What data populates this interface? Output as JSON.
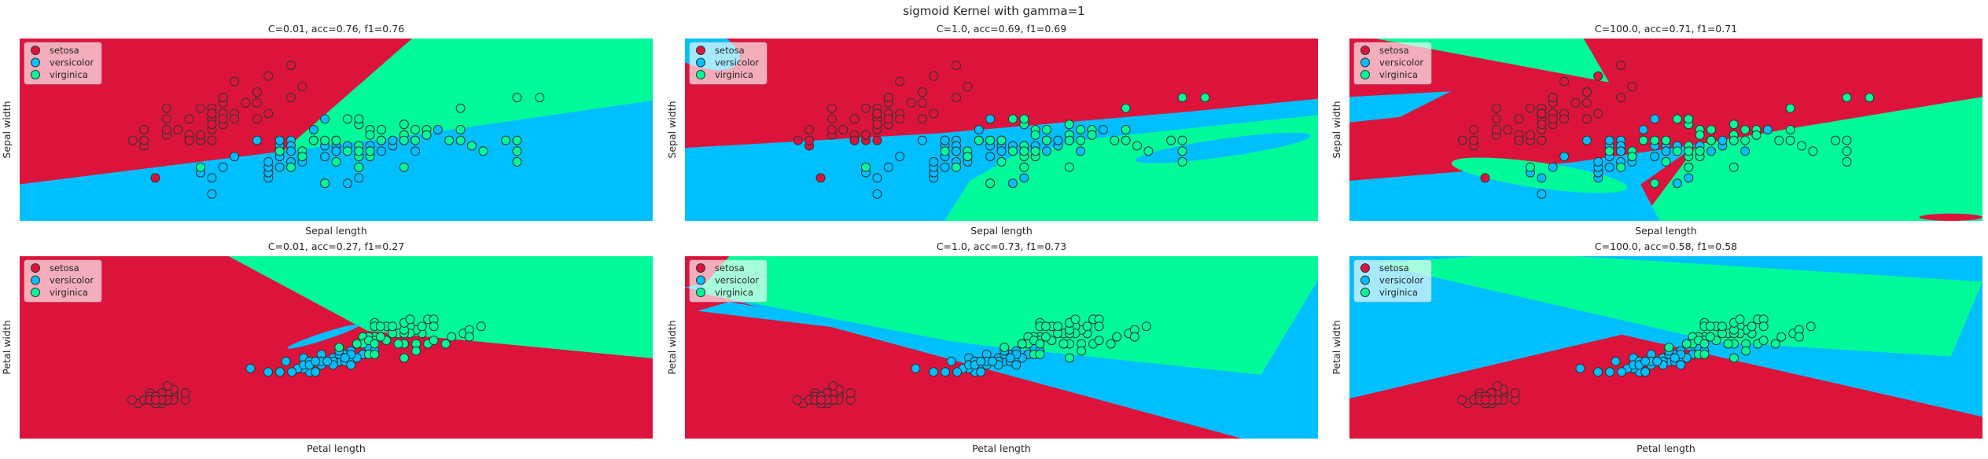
{
  "figure": {
    "suptitle": "sigmoid Kernel with gamma=1"
  },
  "colors": {
    "setosa": "#dc143c",
    "versicolor": "#00bfff",
    "virginica": "#00fa9a",
    "background": "#ffffff",
    "marker_edge": "#333333"
  },
  "legend": {
    "location": "upper-left",
    "entries": [
      "setosa",
      "versicolor",
      "virginica"
    ]
  },
  "chart_data": [
    {
      "type": "scatter",
      "title": "C=0.01, acc=0.76, f1=0.76",
      "xlabel": "Sepal length",
      "ylabel": "Sepal width",
      "features": "sepal",
      "region_variant": "sepal_C001",
      "xlim": [
        3.3,
        8.9
      ],
      "ylim": [
        1.5,
        4.9
      ],
      "ticks": false,
      "grid": false
    },
    {
      "type": "scatter",
      "title": "C=1.0, acc=0.69, f1=0.69",
      "xlabel": "Sepal length",
      "ylabel": "Sepal width",
      "features": "sepal",
      "region_variant": "sepal_C1",
      "xlim": [
        3.3,
        8.9
      ],
      "ylim": [
        1.5,
        4.9
      ],
      "ticks": false,
      "grid": false
    },
    {
      "type": "scatter",
      "title": "C=100.0, acc=0.71, f1=0.71",
      "xlabel": "Sepal length",
      "ylabel": "Sepal width",
      "features": "sepal",
      "region_variant": "sepal_C100",
      "xlim": [
        3.3,
        8.9
      ],
      "ylim": [
        1.5,
        4.9
      ],
      "ticks": false,
      "grid": false
    },
    {
      "type": "scatter",
      "title": "C=0.01, acc=0.27, f1=0.27",
      "xlabel": "Petal length",
      "ylabel": "Petal width",
      "features": "petal",
      "region_variant": "petal_C001",
      "xlim": [
        -0.9,
        9.8
      ],
      "ylim": [
        -0.9,
        4.3
      ],
      "ticks": false,
      "grid": false
    },
    {
      "type": "scatter",
      "title": "C=1.0, acc=0.73, f1=0.73",
      "xlabel": "Petal length",
      "ylabel": "Petal width",
      "features": "petal",
      "region_variant": "petal_C1",
      "xlim": [
        -0.9,
        9.8
      ],
      "ylim": [
        -0.9,
        4.3
      ],
      "ticks": false,
      "grid": false
    },
    {
      "type": "scatter",
      "title": "C=100.0, acc=0.58, f1=0.58",
      "xlabel": "Petal length",
      "ylabel": "Petal width",
      "features": "petal",
      "region_variant": "petal_C100",
      "xlim": [
        -0.9,
        9.8
      ],
      "ylim": [
        -0.9,
        4.3
      ],
      "ticks": false,
      "grid": false
    }
  ],
  "datasets": {
    "sepal": {
      "setosa": [
        [
          5.1,
          3.5
        ],
        [
          4.9,
          3.0
        ],
        [
          4.7,
          3.2
        ],
        [
          4.6,
          3.1
        ],
        [
          5.0,
          3.6
        ],
        [
          5.4,
          3.9
        ],
        [
          4.6,
          3.4
        ],
        [
          5.0,
          3.4
        ],
        [
          4.4,
          2.9
        ],
        [
          4.9,
          3.1
        ],
        [
          5.4,
          3.7
        ],
        [
          4.8,
          3.4
        ],
        [
          4.8,
          3.0
        ],
        [
          4.3,
          3.0
        ],
        [
          5.8,
          4.0
        ],
        [
          5.7,
          4.4
        ],
        [
          5.4,
          3.9
        ],
        [
          5.1,
          3.5
        ],
        [
          5.7,
          3.8
        ],
        [
          5.1,
          3.8
        ],
        [
          5.4,
          3.4
        ],
        [
          5.1,
          3.7
        ],
        [
          4.6,
          3.6
        ],
        [
          5.1,
          3.3
        ],
        [
          4.8,
          3.4
        ],
        [
          5.0,
          3.0
        ],
        [
          5.0,
          3.4
        ],
        [
          5.2,
          3.5
        ],
        [
          5.2,
          3.4
        ],
        [
          4.7,
          3.2
        ],
        [
          4.8,
          3.1
        ],
        [
          5.4,
          3.4
        ],
        [
          5.2,
          4.1
        ],
        [
          5.5,
          4.2
        ],
        [
          4.9,
          3.1
        ],
        [
          5.0,
          3.2
        ],
        [
          5.5,
          3.5
        ],
        [
          4.9,
          3.6
        ],
        [
          4.4,
          3.0
        ],
        [
          5.1,
          3.4
        ],
        [
          5.0,
          3.5
        ],
        [
          4.5,
          2.3
        ],
        [
          4.4,
          3.2
        ],
        [
          5.0,
          3.5
        ],
        [
          5.1,
          3.8
        ],
        [
          4.8,
          3.0
        ],
        [
          5.1,
          3.8
        ],
        [
          4.6,
          3.2
        ],
        [
          5.3,
          3.7
        ],
        [
          5.0,
          3.3
        ]
      ],
      "versicolor": [
        [
          7.0,
          3.2
        ],
        [
          6.4,
          3.2
        ],
        [
          6.9,
          3.1
        ],
        [
          5.5,
          2.3
        ],
        [
          6.5,
          2.8
        ],
        [
          5.7,
          2.8
        ],
        [
          6.3,
          3.3
        ],
        [
          4.9,
          2.4
        ],
        [
          6.6,
          2.9
        ],
        [
          5.2,
          2.7
        ],
        [
          5.0,
          2.0
        ],
        [
          5.9,
          3.0
        ],
        [
          6.0,
          2.2
        ],
        [
          6.1,
          2.9
        ],
        [
          5.6,
          2.9
        ],
        [
          6.7,
          3.1
        ],
        [
          5.6,
          3.0
        ],
        [
          5.8,
          2.7
        ],
        [
          6.2,
          2.2
        ],
        [
          5.6,
          2.5
        ],
        [
          5.9,
          3.2
        ],
        [
          6.1,
          2.8
        ],
        [
          6.3,
          2.5
        ],
        [
          6.1,
          2.8
        ],
        [
          6.4,
          2.9
        ],
        [
          6.6,
          3.0
        ],
        [
          6.8,
          2.8
        ],
        [
          6.7,
          3.0
        ],
        [
          6.0,
          2.9
        ],
        [
          5.7,
          2.6
        ],
        [
          5.5,
          2.4
        ],
        [
          5.5,
          2.4
        ],
        [
          5.8,
          2.7
        ],
        [
          6.0,
          2.7
        ],
        [
          5.4,
          3.0
        ],
        [
          6.0,
          3.4
        ],
        [
          6.7,
          3.1
        ],
        [
          6.3,
          2.3
        ],
        [
          5.6,
          3.0
        ],
        [
          5.5,
          2.5
        ],
        [
          5.5,
          2.6
        ],
        [
          6.1,
          3.0
        ],
        [
          5.8,
          2.6
        ],
        [
          5.0,
          2.3
        ],
        [
          5.6,
          2.7
        ],
        [
          5.7,
          3.0
        ],
        [
          5.7,
          2.9
        ],
        [
          6.2,
          2.9
        ],
        [
          5.1,
          2.5
        ],
        [
          5.7,
          2.8
        ]
      ],
      "virginica": [
        [
          6.3,
          3.3
        ],
        [
          5.8,
          2.7
        ],
        [
          7.1,
          3.0
        ],
        [
          6.3,
          2.9
        ],
        [
          6.5,
          3.0
        ],
        [
          7.6,
          3.0
        ],
        [
          4.9,
          2.5
        ],
        [
          7.3,
          2.9
        ],
        [
          6.7,
          2.5
        ],
        [
          7.2,
          3.6
        ],
        [
          6.5,
          3.2
        ],
        [
          6.4,
          2.7
        ],
        [
          6.8,
          3.0
        ],
        [
          5.7,
          2.5
        ],
        [
          5.8,
          2.8
        ],
        [
          6.4,
          3.2
        ],
        [
          6.5,
          3.0
        ],
        [
          7.7,
          3.8
        ],
        [
          7.7,
          2.6
        ],
        [
          6.0,
          2.2
        ],
        [
          6.9,
          3.2
        ],
        [
          5.6,
          2.8
        ],
        [
          7.7,
          2.8
        ],
        [
          6.3,
          2.7
        ],
        [
          6.7,
          3.3
        ],
        [
          7.2,
          3.2
        ],
        [
          6.2,
          2.8
        ],
        [
          6.1,
          3.0
        ],
        [
          6.4,
          2.8
        ],
        [
          7.2,
          3.0
        ],
        [
          7.4,
          2.8
        ],
        [
          7.9,
          3.8
        ],
        [
          6.4,
          2.8
        ],
        [
          6.3,
          2.8
        ],
        [
          6.1,
          2.6
        ],
        [
          7.7,
          3.0
        ],
        [
          6.3,
          3.4
        ],
        [
          6.4,
          3.1
        ],
        [
          6.0,
          3.0
        ],
        [
          6.9,
          3.1
        ],
        [
          6.7,
          3.1
        ],
        [
          6.9,
          3.1
        ],
        [
          5.8,
          2.7
        ],
        [
          6.8,
          3.2
        ],
        [
          6.7,
          3.3
        ],
        [
          6.7,
          3.0
        ],
        [
          6.3,
          2.5
        ],
        [
          6.5,
          3.0
        ],
        [
          6.2,
          3.4
        ],
        [
          5.9,
          3.0
        ]
      ]
    },
    "petal": {
      "setosa": [
        [
          1.4,
          0.2
        ],
        [
          1.4,
          0.2
        ],
        [
          1.3,
          0.2
        ],
        [
          1.5,
          0.2
        ],
        [
          1.4,
          0.2
        ],
        [
          1.7,
          0.4
        ],
        [
          1.4,
          0.3
        ],
        [
          1.5,
          0.2
        ],
        [
          1.4,
          0.2
        ],
        [
          1.5,
          0.1
        ],
        [
          1.5,
          0.2
        ],
        [
          1.6,
          0.2
        ],
        [
          1.4,
          0.1
        ],
        [
          1.1,
          0.1
        ],
        [
          1.2,
          0.2
        ],
        [
          1.5,
          0.4
        ],
        [
          1.3,
          0.4
        ],
        [
          1.4,
          0.3
        ],
        [
          1.7,
          0.3
        ],
        [
          1.5,
          0.3
        ],
        [
          1.7,
          0.2
        ],
        [
          1.5,
          0.4
        ],
        [
          1.0,
          0.2
        ],
        [
          1.7,
          0.5
        ],
        [
          1.9,
          0.2
        ],
        [
          1.6,
          0.2
        ],
        [
          1.6,
          0.4
        ],
        [
          1.5,
          0.2
        ],
        [
          1.4,
          0.2
        ],
        [
          1.6,
          0.2
        ],
        [
          1.6,
          0.2
        ],
        [
          1.5,
          0.4
        ],
        [
          1.5,
          0.1
        ],
        [
          1.4,
          0.2
        ],
        [
          1.5,
          0.2
        ],
        [
          1.2,
          0.2
        ],
        [
          1.3,
          0.2
        ],
        [
          1.4,
          0.1
        ],
        [
          1.3,
          0.2
        ],
        [
          1.5,
          0.2
        ],
        [
          1.3,
          0.3
        ],
        [
          1.3,
          0.3
        ],
        [
          1.3,
          0.2
        ],
        [
          1.6,
          0.6
        ],
        [
          1.9,
          0.4
        ],
        [
          1.4,
          0.3
        ],
        [
          1.6,
          0.2
        ],
        [
          1.4,
          0.2
        ],
        [
          1.5,
          0.2
        ],
        [
          1.4,
          0.2
        ]
      ],
      "versicolor": [
        [
          4.7,
          1.4
        ],
        [
          4.5,
          1.5
        ],
        [
          4.9,
          1.5
        ],
        [
          4.0,
          1.3
        ],
        [
          4.6,
          1.5
        ],
        [
          4.5,
          1.3
        ],
        [
          4.7,
          1.6
        ],
        [
          3.3,
          1.0
        ],
        [
          4.6,
          1.3
        ],
        [
          3.9,
          1.4
        ],
        [
          3.5,
          1.0
        ],
        [
          4.2,
          1.5
        ],
        [
          4.0,
          1.0
        ],
        [
          4.7,
          1.4
        ],
        [
          3.6,
          1.3
        ],
        [
          4.4,
          1.4
        ],
        [
          4.5,
          1.5
        ],
        [
          4.1,
          1.0
        ],
        [
          4.5,
          1.5
        ],
        [
          3.9,
          1.1
        ],
        [
          4.8,
          1.8
        ],
        [
          4.0,
          1.3
        ],
        [
          4.9,
          1.5
        ],
        [
          4.7,
          1.2
        ],
        [
          4.3,
          1.3
        ],
        [
          4.4,
          1.4
        ],
        [
          4.8,
          1.4
        ],
        [
          5.0,
          1.7
        ],
        [
          4.5,
          1.5
        ],
        [
          3.5,
          1.0
        ],
        [
          3.8,
          1.1
        ],
        [
          3.7,
          1.0
        ],
        [
          3.9,
          1.2
        ],
        [
          5.1,
          1.6
        ],
        [
          4.5,
          1.5
        ],
        [
          4.5,
          1.6
        ],
        [
          4.7,
          1.5
        ],
        [
          4.4,
          1.3
        ],
        [
          4.1,
          1.3
        ],
        [
          4.0,
          1.3
        ],
        [
          4.4,
          1.2
        ],
        [
          4.6,
          1.4
        ],
        [
          4.0,
          1.2
        ],
        [
          3.3,
          1.0
        ],
        [
          4.2,
          1.3
        ],
        [
          4.2,
          1.2
        ],
        [
          4.2,
          1.3
        ],
        [
          4.3,
          1.3
        ],
        [
          3.0,
          1.1
        ],
        [
          4.1,
          1.3
        ]
      ],
      "virginica": [
        [
          6.0,
          2.5
        ],
        [
          5.1,
          1.9
        ],
        [
          5.9,
          2.1
        ],
        [
          5.6,
          1.8
        ],
        [
          5.8,
          2.2
        ],
        [
          6.6,
          2.1
        ],
        [
          4.5,
          1.7
        ],
        [
          6.3,
          1.8
        ],
        [
          5.8,
          1.8
        ],
        [
          6.1,
          2.5
        ],
        [
          5.1,
          2.0
        ],
        [
          5.3,
          1.9
        ],
        [
          5.5,
          2.1
        ],
        [
          5.0,
          2.0
        ],
        [
          5.1,
          2.4
        ],
        [
          5.3,
          2.3
        ],
        [
          5.5,
          1.8
        ],
        [
          6.7,
          2.2
        ],
        [
          6.9,
          2.3
        ],
        [
          5.0,
          1.5
        ],
        [
          5.7,
          2.3
        ],
        [
          4.9,
          2.0
        ],
        [
          6.7,
          2.0
        ],
        [
          4.9,
          1.8
        ],
        [
          5.7,
          2.1
        ],
        [
          6.0,
          1.8
        ],
        [
          4.8,
          1.8
        ],
        [
          4.9,
          1.8
        ],
        [
          5.6,
          2.1
        ],
        [
          5.8,
          1.6
        ],
        [
          6.1,
          1.9
        ],
        [
          6.4,
          2.0
        ],
        [
          5.6,
          2.2
        ],
        [
          5.1,
          1.5
        ],
        [
          5.6,
          1.4
        ],
        [
          6.1,
          2.3
        ],
        [
          5.6,
          2.4
        ],
        [
          5.5,
          1.8
        ],
        [
          4.8,
          1.8
        ],
        [
          5.4,
          2.1
        ],
        [
          5.6,
          2.4
        ],
        [
          5.1,
          2.3
        ],
        [
          5.1,
          1.9
        ],
        [
          5.9,
          2.3
        ],
        [
          5.7,
          2.5
        ],
        [
          5.2,
          2.3
        ],
        [
          5.0,
          1.9
        ],
        [
          5.2,
          2.0
        ],
        [
          5.4,
          2.3
        ],
        [
          5.1,
          1.8
        ]
      ]
    }
  }
}
